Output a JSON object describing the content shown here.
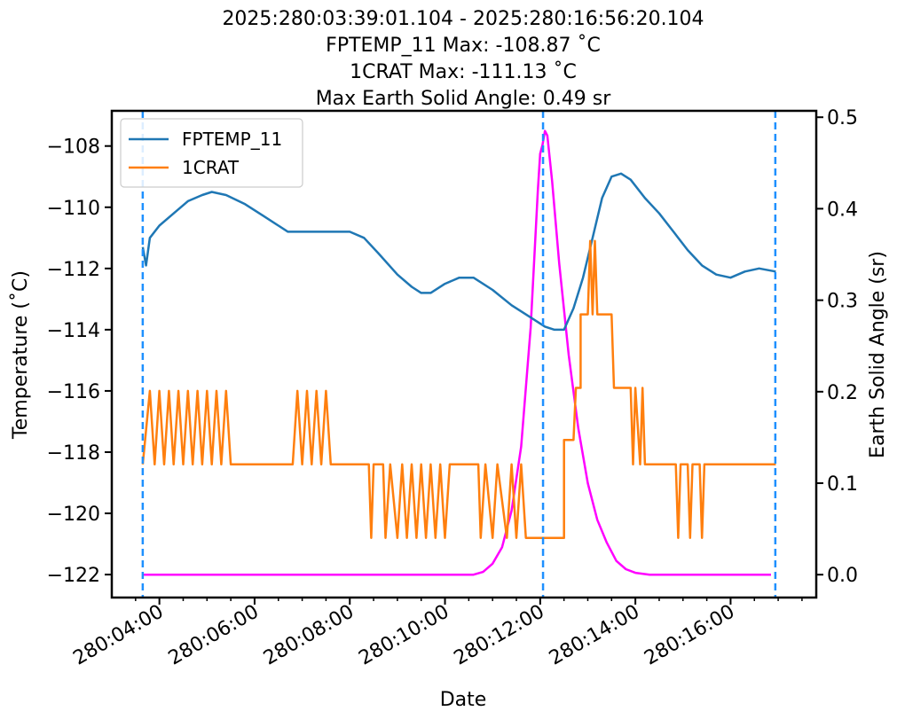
{
  "chart_data": {
    "type": "line",
    "title_lines": [
      "2025:280:03:39:01.104 - 2025:280:16:56:20.104",
      "FPTEMP_11 Max: -108.87 ˚C",
      "1CRAT Max: -111.13 ˚C",
      "Max Earth Solid Angle: 0.49 sr"
    ],
    "xlabel": "Date",
    "ylabel_left": "Temperature (˚C)",
    "ylabel_right": "Earth Solid Angle (sr)",
    "x_unit": "hours since 280:00:00",
    "xlim": [
      3.0,
      17.8
    ],
    "ylim_left": [
      -122.75,
      -106.85
    ],
    "ylim_right": [
      -0.025,
      0.507
    ],
    "x_ticks": [
      {
        "value": 4,
        "label": "280:04:00"
      },
      {
        "value": 6,
        "label": "280:06:00"
      },
      {
        "value": 8,
        "label": "280:08:00"
      },
      {
        "value": 10,
        "label": "280:10:00"
      },
      {
        "value": 12,
        "label": "280:12:00"
      },
      {
        "value": 14,
        "label": "280:14:00"
      },
      {
        "value": 16,
        "label": "280:16:00"
      }
    ],
    "y_ticks_left": [
      {
        "value": -108,
        "label": "−108"
      },
      {
        "value": -110,
        "label": "−110"
      },
      {
        "value": -112,
        "label": "−112"
      },
      {
        "value": -114,
        "label": "−114"
      },
      {
        "value": -116,
        "label": "−116"
      },
      {
        "value": -118,
        "label": "−118"
      },
      {
        "value": -120,
        "label": "−120"
      },
      {
        "value": -122,
        "label": "−122"
      }
    ],
    "y_ticks_right": [
      {
        "value": 0.0,
        "label": "0.0"
      },
      {
        "value": 0.1,
        "label": "0.1"
      },
      {
        "value": 0.2,
        "label": "0.2"
      },
      {
        "value": 0.3,
        "label": "0.3"
      },
      {
        "value": 0.4,
        "label": "0.4"
      },
      {
        "value": 0.5,
        "label": "0.5"
      }
    ],
    "vlines": [
      3.65,
      12.06,
      16.94
    ],
    "legend": {
      "placement": "upper-left",
      "entries": [
        "FPTEMP_11",
        "1CRAT"
      ]
    },
    "colors": {
      "FPTEMP_11": "#1f77b4",
      "1CRAT": "#ff7f0e",
      "earth": "#ff00ff",
      "vline": "#1e90ff"
    },
    "series": [
      {
        "name": "FPTEMP_11",
        "axis": "left",
        "points": [
          [
            3.65,
            -111.3
          ],
          [
            3.72,
            -111.9
          ],
          [
            3.8,
            -111.0
          ],
          [
            4.0,
            -110.6
          ],
          [
            4.3,
            -110.2
          ],
          [
            4.6,
            -109.8
          ],
          [
            4.9,
            -109.6
          ],
          [
            5.1,
            -109.5
          ],
          [
            5.4,
            -109.6
          ],
          [
            5.8,
            -109.9
          ],
          [
            6.2,
            -110.3
          ],
          [
            6.5,
            -110.6
          ],
          [
            6.7,
            -110.8
          ],
          [
            7.0,
            -110.8
          ],
          [
            7.5,
            -110.8
          ],
          [
            8.0,
            -110.8
          ],
          [
            8.3,
            -111.0
          ],
          [
            8.6,
            -111.5
          ],
          [
            9.0,
            -112.2
          ],
          [
            9.3,
            -112.6
          ],
          [
            9.5,
            -112.8
          ],
          [
            9.7,
            -112.8
          ],
          [
            10.0,
            -112.5
          ],
          [
            10.3,
            -112.3
          ],
          [
            10.6,
            -112.3
          ],
          [
            11.0,
            -112.7
          ],
          [
            11.4,
            -113.2
          ],
          [
            11.8,
            -113.6
          ],
          [
            12.1,
            -113.9
          ],
          [
            12.3,
            -114.0
          ],
          [
            12.5,
            -114.0
          ],
          [
            12.7,
            -113.3
          ],
          [
            12.9,
            -112.3
          ],
          [
            13.1,
            -111.0
          ],
          [
            13.3,
            -109.7
          ],
          [
            13.5,
            -109.0
          ],
          [
            13.7,
            -108.9
          ],
          [
            13.9,
            -109.1
          ],
          [
            14.2,
            -109.7
          ],
          [
            14.5,
            -110.2
          ],
          [
            14.8,
            -110.8
          ],
          [
            15.1,
            -111.4
          ],
          [
            15.4,
            -111.9
          ],
          [
            15.7,
            -112.2
          ],
          [
            16.0,
            -112.3
          ],
          [
            16.3,
            -112.1
          ],
          [
            16.6,
            -112.0
          ],
          [
            16.95,
            -112.1
          ]
        ]
      },
      {
        "name": "1CRAT",
        "axis": "left",
        "points": [
          [
            3.65,
            -118.4
          ],
          [
            3.8,
            -116.0
          ],
          [
            3.9,
            -118.4
          ],
          [
            4.0,
            -116.0
          ],
          [
            4.1,
            -118.4
          ],
          [
            4.2,
            -116.0
          ],
          [
            4.3,
            -118.4
          ],
          [
            4.4,
            -116.0
          ],
          [
            4.5,
            -118.4
          ],
          [
            4.6,
            -116.0
          ],
          [
            4.7,
            -118.4
          ],
          [
            4.8,
            -116.0
          ],
          [
            4.9,
            -118.4
          ],
          [
            5.0,
            -116.0
          ],
          [
            5.1,
            -118.4
          ],
          [
            5.2,
            -116.0
          ],
          [
            5.3,
            -118.4
          ],
          [
            5.4,
            -116.0
          ],
          [
            5.5,
            -118.4
          ],
          [
            6.8,
            -118.4
          ],
          [
            6.9,
            -116.0
          ],
          [
            7.0,
            -118.4
          ],
          [
            7.1,
            -116.0
          ],
          [
            7.2,
            -118.4
          ],
          [
            7.3,
            -116.0
          ],
          [
            7.4,
            -118.4
          ],
          [
            7.5,
            -116.0
          ],
          [
            7.6,
            -118.4
          ],
          [
            8.4,
            -118.4
          ],
          [
            8.45,
            -120.8
          ],
          [
            8.5,
            -118.4
          ],
          [
            8.7,
            -118.4
          ],
          [
            8.75,
            -120.8
          ],
          [
            8.85,
            -118.4
          ],
          [
            9.0,
            -120.8
          ],
          [
            9.1,
            -118.4
          ],
          [
            9.2,
            -120.8
          ],
          [
            9.3,
            -118.4
          ],
          [
            9.4,
            -120.8
          ],
          [
            9.5,
            -118.4
          ],
          [
            9.6,
            -120.8
          ],
          [
            9.7,
            -118.4
          ],
          [
            9.8,
            -120.8
          ],
          [
            9.9,
            -118.4
          ],
          [
            10.0,
            -120.8
          ],
          [
            10.1,
            -118.4
          ],
          [
            10.7,
            -118.4
          ],
          [
            10.75,
            -120.8
          ],
          [
            10.85,
            -118.4
          ],
          [
            11.0,
            -120.8
          ],
          [
            11.1,
            -118.4
          ],
          [
            11.3,
            -120.8
          ],
          [
            11.4,
            -118.4
          ],
          [
            11.5,
            -120.8
          ],
          [
            11.6,
            -118.4
          ],
          [
            11.7,
            -120.8
          ],
          [
            12.5,
            -120.8
          ],
          [
            12.5,
            -117.6
          ],
          [
            12.7,
            -117.6
          ],
          [
            12.75,
            -115.9
          ],
          [
            12.85,
            -115.9
          ],
          [
            12.85,
            -113.5
          ],
          [
            13.0,
            -113.5
          ],
          [
            13.05,
            -111.1
          ],
          [
            13.1,
            -113.5
          ],
          [
            13.15,
            -111.1
          ],
          [
            13.2,
            -113.5
          ],
          [
            13.5,
            -113.5
          ],
          [
            13.55,
            -115.9
          ],
          [
            13.9,
            -115.9
          ],
          [
            13.95,
            -118.4
          ],
          [
            14.0,
            -115.9
          ],
          [
            14.1,
            -118.4
          ],
          [
            14.15,
            -115.9
          ],
          [
            14.2,
            -118.4
          ],
          [
            14.85,
            -118.4
          ],
          [
            14.9,
            -120.8
          ],
          [
            14.95,
            -118.4
          ],
          [
            15.1,
            -118.4
          ],
          [
            15.15,
            -120.8
          ],
          [
            15.2,
            -118.4
          ],
          [
            15.35,
            -118.4
          ],
          [
            15.4,
            -120.8
          ],
          [
            15.45,
            -118.4
          ],
          [
            16.95,
            -118.4
          ]
        ]
      },
      {
        "name": "Earth Solid Angle",
        "axis": "right",
        "points": [
          [
            3.65,
            0.0
          ],
          [
            10.6,
            0.0
          ],
          [
            10.8,
            0.003
          ],
          [
            11.0,
            0.012
          ],
          [
            11.2,
            0.03
          ],
          [
            11.4,
            0.07
          ],
          [
            11.6,
            0.14
          ],
          [
            11.8,
            0.27
          ],
          [
            11.95,
            0.42
          ],
          [
            12.0,
            0.46
          ],
          [
            12.05,
            0.47
          ],
          [
            12.1,
            0.485
          ],
          [
            12.15,
            0.48
          ],
          [
            12.25,
            0.43
          ],
          [
            12.4,
            0.34
          ],
          [
            12.6,
            0.24
          ],
          [
            12.8,
            0.16
          ],
          [
            13.0,
            0.1
          ],
          [
            13.2,
            0.06
          ],
          [
            13.4,
            0.035
          ],
          [
            13.6,
            0.015
          ],
          [
            13.8,
            0.006
          ],
          [
            14.0,
            0.002
          ],
          [
            14.3,
            0.0
          ],
          [
            16.85,
            0.0
          ]
        ]
      }
    ]
  }
}
